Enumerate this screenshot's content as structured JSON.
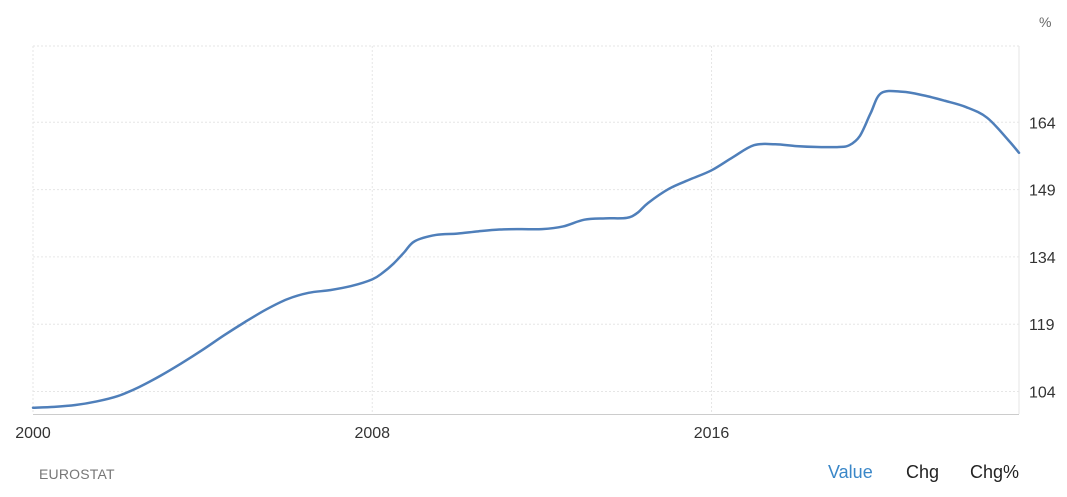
{
  "chart_data": {
    "type": "line",
    "unit": "%",
    "x_ticks": [
      {
        "value": 2000,
        "label": "2000"
      },
      {
        "value": 2008,
        "label": "2008"
      },
      {
        "value": 2016,
        "label": "2016"
      }
    ],
    "xlim": [
      2000,
      2023.25
    ],
    "y_ticks": [
      104,
      119,
      134,
      149,
      164
    ],
    "ylim": [
      99,
      181
    ],
    "grid": true,
    "y_axis_side": "right",
    "series": [
      {
        "color": "#4f7fba",
        "x": [
          2000,
          2000.5,
          2001,
          2001.5,
          2002,
          2002.5,
          2003,
          2003.5,
          2004,
          2004.5,
          2005,
          2005.5,
          2006,
          2006.5,
          2007,
          2007.5,
          2008,
          2008.25,
          2008.5,
          2008.75,
          2009,
          2009.5,
          2010,
          2010.5,
          2011,
          2011.5,
          2012,
          2012.5,
          2013,
          2013.5,
          2014,
          2014.25,
          2014.5,
          2015,
          2015.5,
          2016,
          2016.5,
          2017,
          2017.5,
          2018,
          2018.5,
          2019,
          2019.25,
          2019.5,
          2019.75,
          2020,
          2020.5,
          2021,
          2021.5,
          2022,
          2022.5,
          2023,
          2023.25
        ],
        "y": [
          100.4,
          100.6,
          101.0,
          101.8,
          103.0,
          105.0,
          107.5,
          110.3,
          113.3,
          116.5,
          119.5,
          122.3,
          124.6,
          126.0,
          126.6,
          127.5,
          129.0,
          130.5,
          132.5,
          135.0,
          137.5,
          138.9,
          139.2,
          139.7,
          140.1,
          140.2,
          140.2,
          140.8,
          142.3,
          142.6,
          142.7,
          143.8,
          146.0,
          149.2,
          151.3,
          153.3,
          156.2,
          158.9,
          159.1,
          158.7,
          158.5,
          158.5,
          158.9,
          161.0,
          166.0,
          170.5,
          170.8,
          170.0,
          168.8,
          167.4,
          165.0,
          160.0,
          157.2
        ]
      }
    ]
  },
  "footer": {
    "source": "EUROSTAT",
    "modes": [
      {
        "label": "Value",
        "active": true
      },
      {
        "label": "Chg",
        "active": false
      },
      {
        "label": "Chg%",
        "active": false
      }
    ]
  },
  "colors": {
    "line": "#4f7fba",
    "grid": "#e6e6e6",
    "active_mode": "#3a87c8"
  }
}
